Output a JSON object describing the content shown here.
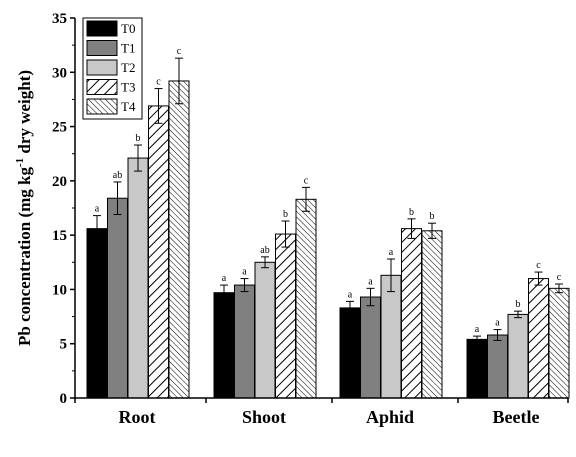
{
  "chart_data": {
    "type": "bar",
    "ylabel_main": "Pb concentration (mg kg",
    "ylabel_sup": "-1",
    "ylabel_rest": " dry weight)",
    "categories": [
      "Root",
      "Shoot",
      "Aphid",
      "Beetle"
    ],
    "ylim": [
      0,
      35
    ],
    "yticks": [
      "0",
      "5",
      "10",
      "15",
      "20",
      "25",
      "30",
      "35"
    ],
    "legend_position": "top-left",
    "series": [
      {
        "name": "T0",
        "fill": "#000000",
        "pattern": "solid",
        "values": [
          15.6,
          9.7,
          8.3,
          5.4
        ],
        "errors": [
          1.2,
          0.7,
          0.6,
          0.3
        ],
        "letters": [
          "a",
          "a",
          "a",
          "a"
        ]
      },
      {
        "name": "T1",
        "fill": "#808080",
        "pattern": "solid",
        "values": [
          18.4,
          10.4,
          9.3,
          5.8
        ],
        "errors": [
          1.5,
          0.6,
          0.8,
          0.5
        ],
        "letters": [
          "ab",
          "a",
          "a",
          "a"
        ]
      },
      {
        "name": "T2",
        "fill": "#c8c8c8",
        "pattern": "solid",
        "values": [
          22.1,
          12.5,
          11.3,
          7.7
        ],
        "errors": [
          1.2,
          0.5,
          1.5,
          0.3
        ],
        "letters": [
          "b",
          "ab",
          "a",
          "b"
        ]
      },
      {
        "name": "T3",
        "fill": "#ffffff",
        "pattern": "hatch-wide",
        "values": [
          26.9,
          15.1,
          15.6,
          11.0
        ],
        "errors": [
          1.6,
          1.2,
          0.9,
          0.6
        ],
        "letters": [
          "c",
          "b",
          "b",
          "c"
        ]
      },
      {
        "name": "T4",
        "fill": "#ffffff",
        "pattern": "hatch-dense",
        "values": [
          29.2,
          18.3,
          15.4,
          10.1
        ],
        "errors": [
          2.1,
          1.1,
          0.7,
          0.4
        ],
        "letters": [
          "c",
          "c",
          "b",
          "c"
        ]
      }
    ]
  }
}
